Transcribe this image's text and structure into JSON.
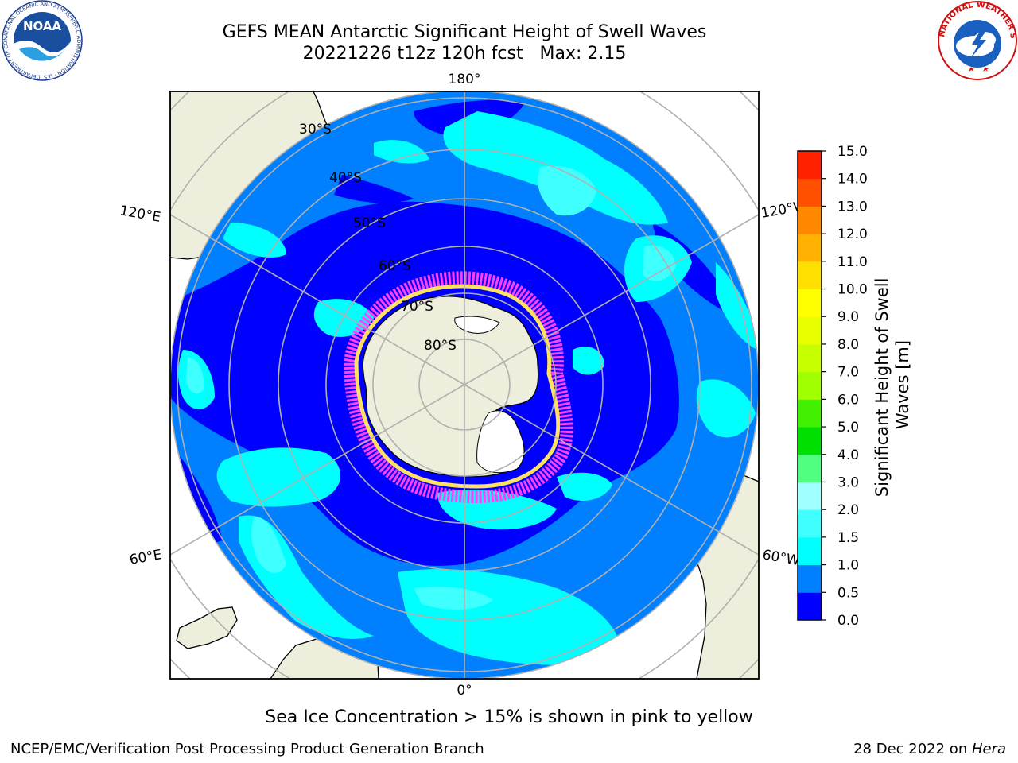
{
  "title": {
    "line1": "GEFS MEAN Antarctic Significant Height of Swell Waves",
    "line2": "20221226 t12z 120h fcst   Max: 2.15"
  },
  "map": {
    "projection": "south-polar-stereographic",
    "longitude_labels": {
      "top": "180°",
      "bottom": "0°",
      "upper_left": "120°E",
      "upper_right": "120°W",
      "lower_left": "60°E",
      "lower_right": "60°W"
    },
    "latitude_labels": [
      "30°S",
      "40°S",
      "50°S",
      "60°S",
      "70°S",
      "80°S"
    ],
    "colors": {
      "land": "#eeeedc",
      "ocean_0_0.5": "#0000ff",
      "ocean_0.5_1.0": "#0080ff",
      "ocean_1.0_1.5": "#00ffff",
      "ocean_1.5_2.0": "#40ffff",
      "ocean_2.0_3.0": "#a0ffff",
      "sea_ice": "#ff40ff",
      "grid": "#b0b0b0"
    }
  },
  "colorbar": {
    "title": "Significant Height of Swell Waves [m]",
    "tick_labels": [
      "0.0",
      "0.5",
      "1.0",
      "1.5",
      "2.0",
      "3.0",
      "4.0",
      "5.0",
      "6.0",
      "7.0",
      "8.0",
      "9.0",
      "10.0",
      "11.0",
      "12.0",
      "13.0",
      "14.0",
      "15.0"
    ],
    "colors": [
      "#0000ff",
      "#0080ff",
      "#00ffff",
      "#40ffff",
      "#a0ffff",
      "#50ff80",
      "#00e000",
      "#40f000",
      "#a0ff00",
      "#c8ff00",
      "#e8ff00",
      "#ffff00",
      "#ffe000",
      "#ffb000",
      "#ff8800",
      "#ff5000",
      "#ff2000",
      "#ff0000"
    ]
  },
  "note": "Sea Ice Concentration > 15% is shown in pink to yellow",
  "footer": {
    "left": "NCEP/EMC/Verification Post Processing Product Generation Branch",
    "right_date": "28 Dec 2022 on ",
    "right_host": "Hera"
  },
  "logos": {
    "noaa_text": "NOAA",
    "noaa_ring_text": "NATIONAL OCEANIC AND ATMOSPHERIC ADMINISTRATION · U.S. DEPARTMENT OF COMMERCE",
    "nws_ring_text": "NATIONAL WEATHER SERVICE"
  }
}
